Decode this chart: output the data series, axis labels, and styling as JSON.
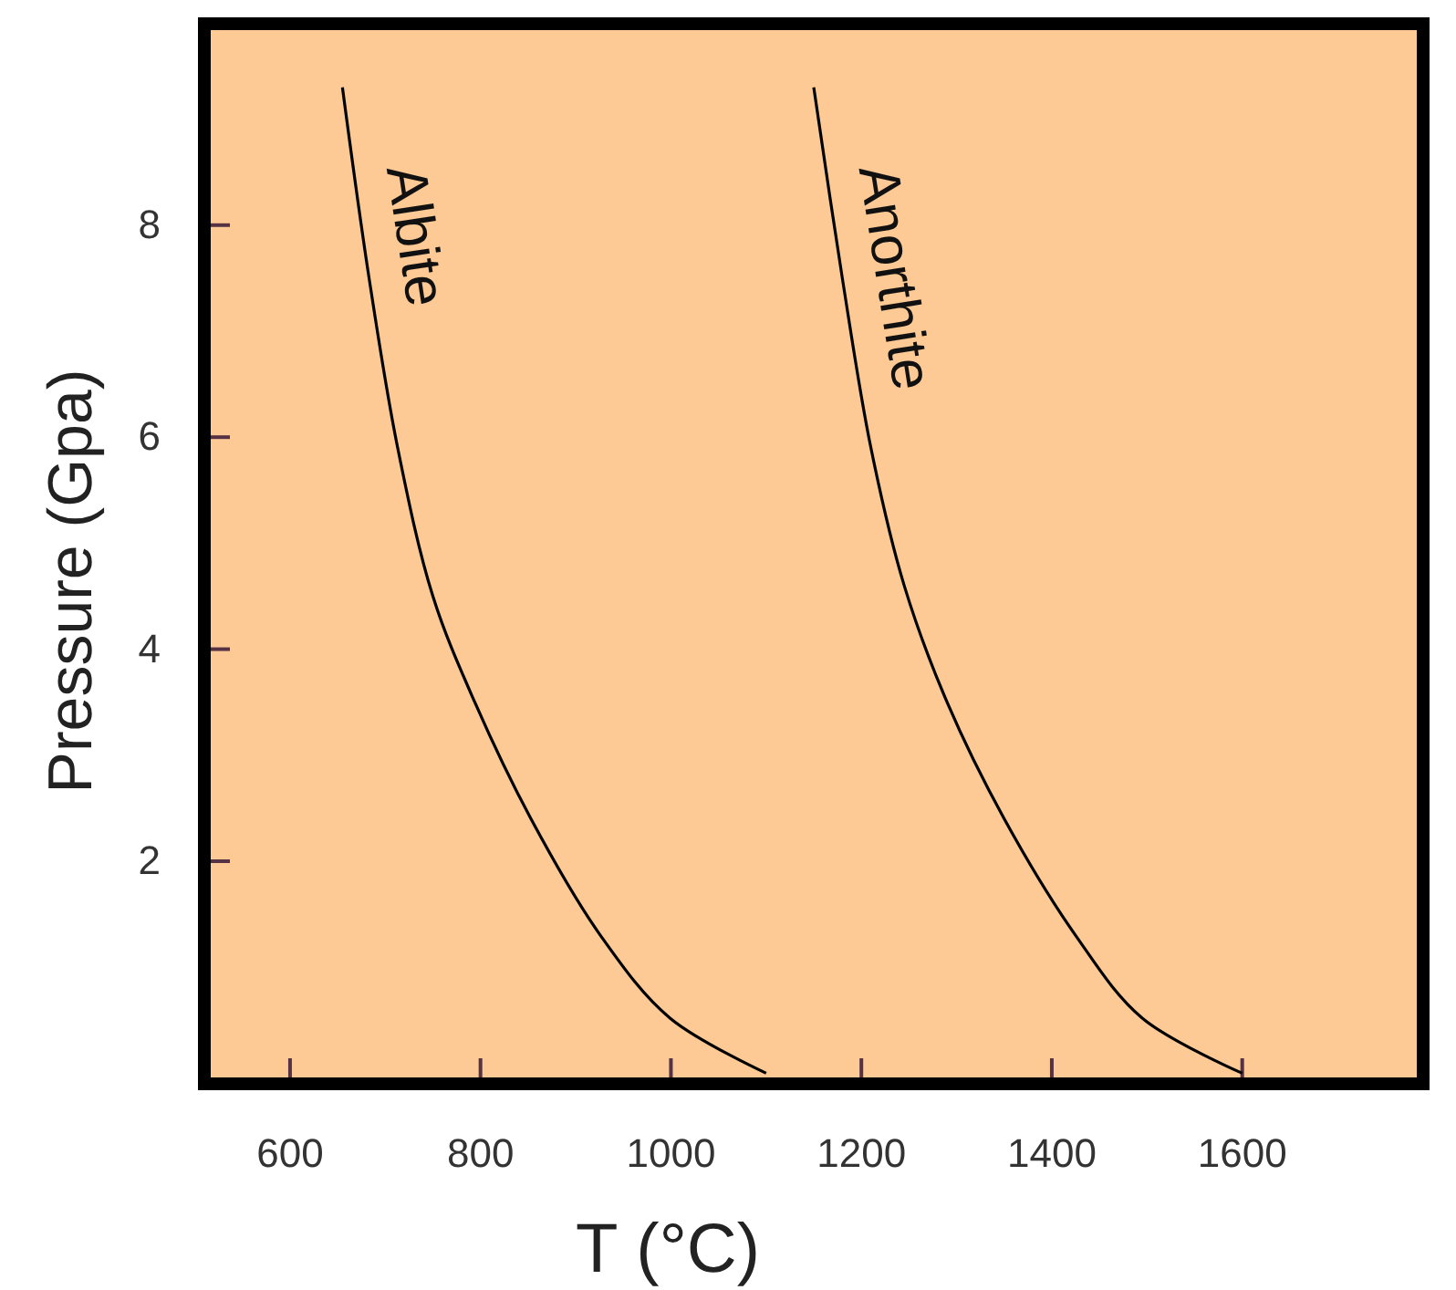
{
  "chart_data": {
    "type": "line",
    "xlabel": "T (°C)",
    "ylabel": "Pressure (Gpa)",
    "xlim": [
      510,
      1790
    ],
    "ylim": [
      -0.1,
      9.9
    ],
    "xticks": [
      600,
      800,
      1000,
      1200,
      1400,
      1600
    ],
    "yticks": [
      2,
      4,
      6,
      8
    ],
    "line_style": "solid",
    "series": [
      {
        "name": "Albite",
        "color": "#000000",
        "x": [
          655,
          683,
          713,
          750,
          794,
          853,
          926,
          999,
          1100
        ],
        "values": [
          9.3,
          7.5,
          5.9,
          4.5,
          3.5,
          2.4,
          1.3,
          0.52,
          0
        ]
      },
      {
        "name": "Anorthite",
        "color": "#000000",
        "x": [
          1150,
          1180,
          1210,
          1245,
          1290,
          1350,
          1425,
          1495,
          1600
        ],
        "values": [
          9.3,
          7.5,
          5.9,
          4.6,
          3.5,
          2.4,
          1.3,
          0.52,
          0
        ]
      }
    ]
  }
}
